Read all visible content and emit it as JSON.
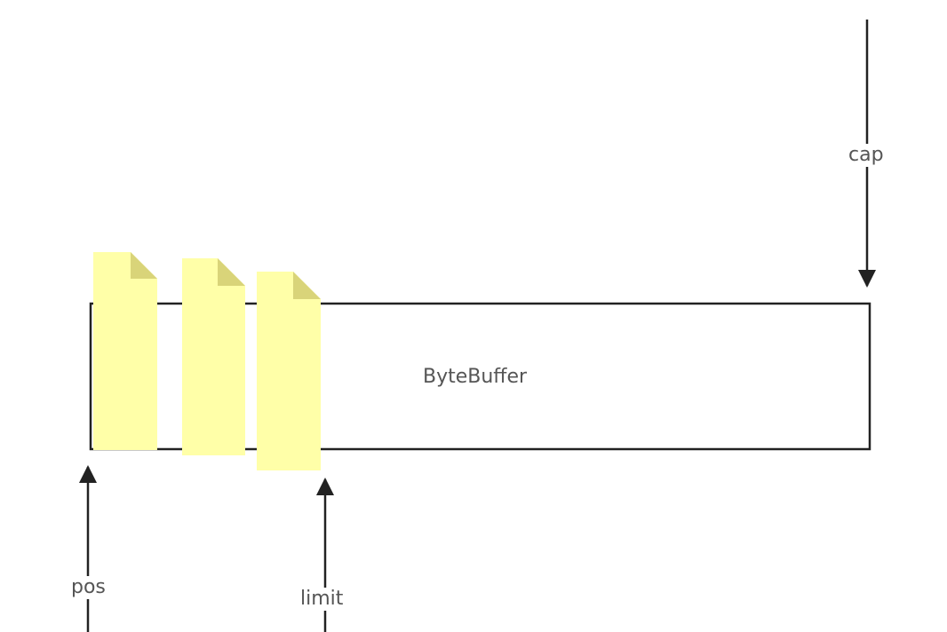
{
  "diagram": {
    "buffer_label": "ByteBuffer",
    "pointers": {
      "cap": "cap",
      "pos": "pos",
      "limit": "limit"
    },
    "colors": {
      "page_fill": "#ffffa8",
      "page_fold": "#d9d479",
      "line": "#222222"
    }
  }
}
